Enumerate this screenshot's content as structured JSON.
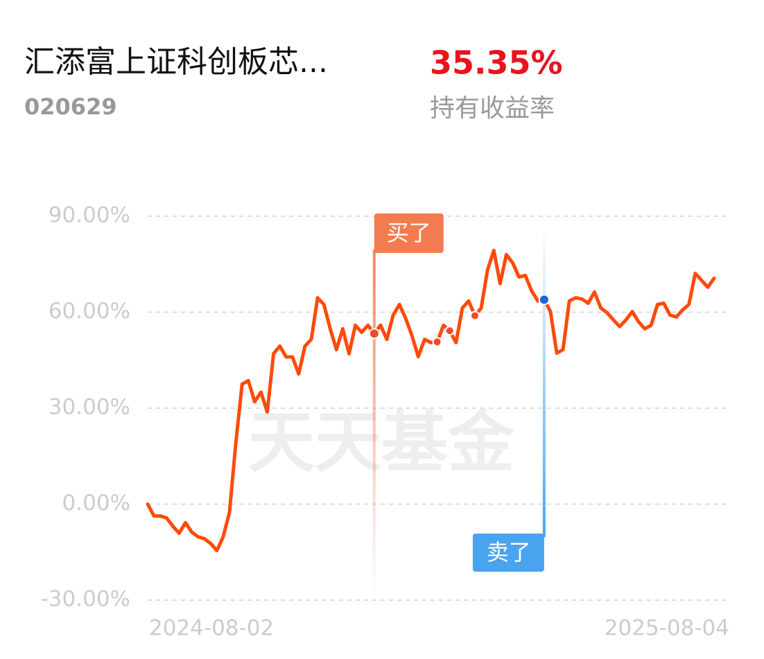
{
  "header": {
    "fund_name": "汇添富上证科创板芯...",
    "fund_code": "020629",
    "return_value": "35.35%",
    "return_label": "持有收益率"
  },
  "watermark": "天天基金",
  "chart_data": {
    "type": "line",
    "categories": [
      "2024-08-02",
      null,
      null,
      null,
      null,
      null,
      null,
      null,
      null,
      null,
      null,
      null,
      null,
      null,
      null,
      null,
      null,
      null,
      null,
      null,
      null,
      null,
      null,
      null,
      null,
      null,
      null,
      null,
      null,
      null,
      null,
      null,
      null,
      null,
      null,
      null,
      null,
      null,
      null,
      null,
      null,
      null,
      null,
      null,
      null,
      null,
      null,
      null,
      null,
      null,
      null,
      null,
      null,
      null,
      null,
      null,
      null,
      null,
      null,
      null,
      null,
      null,
      null,
      null,
      null,
      null,
      null,
      null,
      null,
      null,
      null,
      null,
      null,
      null,
      null,
      null,
      null,
      null,
      null,
      null,
      null,
      null,
      null,
      null,
      null,
      null,
      null,
      null,
      null,
      null,
      "2025-08-04"
    ],
    "series": [
      {
        "color": "#ff4a0a",
        "values": [
          0,
          -3.7,
          -3.7,
          -4.3,
          -6.9,
          -9.1,
          -5.8,
          -8.7,
          -10.2,
          -10.8,
          -12.3,
          -14.5,
          -10.2,
          -2.6,
          19,
          37.5,
          38.6,
          32,
          35,
          28.8,
          47,
          49.4,
          46,
          46,
          40.7,
          49.4,
          51.5,
          64.5,
          62.4,
          54.8,
          48.3,
          54.8,
          47,
          55.9,
          53.7,
          55.9,
          53.3,
          55.9,
          51.5,
          59,
          62.4,
          58,
          52.6,
          46.1,
          51.5,
          50.5,
          50.7,
          55.9,
          54.2,
          50.5,
          61.3,
          63.5,
          58.9,
          61.3,
          73.2,
          79.3,
          68.9,
          78,
          75.4,
          71,
          71.5,
          66.7,
          63.5,
          63.9,
          60.2,
          47.2,
          48.3,
          63.5,
          64.5,
          64.1,
          62.8,
          66.3,
          61.3,
          59.8,
          57.6,
          55.5,
          57.6,
          60.2,
          57,
          54.8,
          55.9,
          62.4,
          62.8,
          59.1,
          58.5,
          60.7,
          62.4,
          72.1,
          70,
          67.8,
          70.6
        ]
      }
    ],
    "ylim": [
      -30,
      90
    ],
    "yticks": [
      {
        "value": -30,
        "label": "-30.00%"
      },
      {
        "value": 0,
        "label": "0.00%"
      },
      {
        "value": 30,
        "label": "30.00%"
      },
      {
        "value": 60,
        "label": "60.00%"
      },
      {
        "value": 90,
        "label": "90.00%"
      }
    ],
    "grid": true,
    "trade_dots": [
      {
        "index": 46,
        "color": "#f04a2a"
      },
      {
        "index": 48,
        "color": "#f04a2a"
      },
      {
        "index": 52,
        "color": "#f04a2a"
      }
    ],
    "annotations": [
      {
        "label": "买了",
        "index": 36,
        "color": "#f47b50"
      },
      {
        "label": "卖了",
        "index": 63,
        "color": "#4aa3ef"
      }
    ]
  }
}
